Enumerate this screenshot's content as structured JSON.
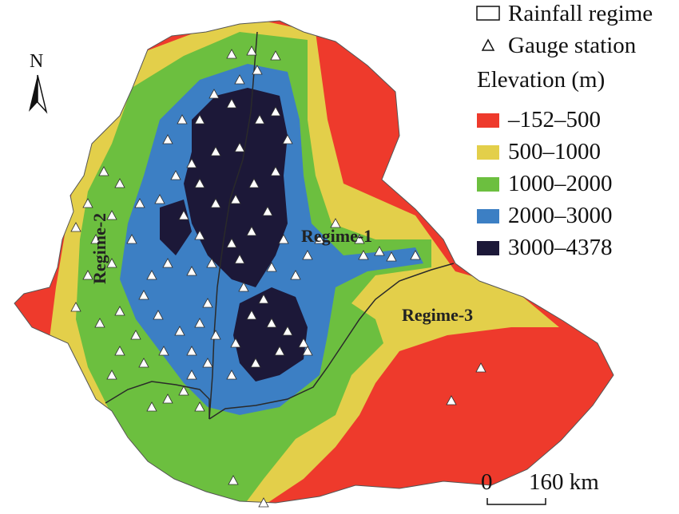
{
  "legend": {
    "rainfall_regime": "Rainfall regime",
    "gauge_station": "Gauge station",
    "elevation_title": "Elevation (m)",
    "classes": [
      {
        "label": "–152–500",
        "color": "#ee3a2c"
      },
      {
        "label": "500–1000",
        "color": "#e3cf4a"
      },
      {
        "label": "1000–2000",
        "color": "#6cbf3f"
      },
      {
        "label": "2000–3000",
        "color": "#3c7fc4"
      },
      {
        "label": "3000–4378",
        "color": "#1c1838"
      }
    ]
  },
  "regimes": {
    "r1": "Regime-1",
    "r2": "Regime-2",
    "r3": "Regime-3"
  },
  "north": "N",
  "scale": {
    "zero": "0",
    "distance": "160 km"
  },
  "colors": {
    "lowland": "#ee3a2c",
    "midland": "#e3cf4a",
    "highland": "#6cbf3f",
    "upland": "#3c7fc4",
    "summit": "#1c1838",
    "boundary": "#2a2a2a",
    "station": "#ffffff"
  }
}
